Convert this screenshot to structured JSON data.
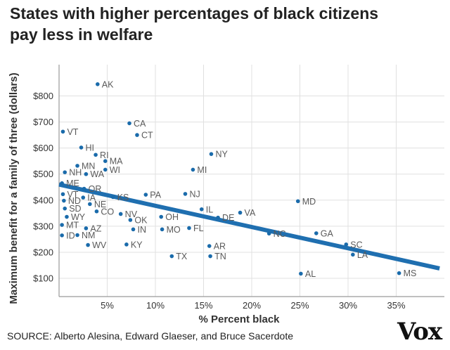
{
  "chart_data": {
    "type": "scatter",
    "title_line1": "States with higher percentages of black citizens",
    "title_line2": "pay less in welfare",
    "xlabel": "% Percent black",
    "ylabel": "Maximum benefit for a family of three (dollars)",
    "xlim": [
      0,
      40
    ],
    "ylim": [
      30,
      920
    ],
    "x_ticks": [
      {
        "value": 5,
        "label": "5%"
      },
      {
        "value": 10,
        "label": "10%"
      },
      {
        "value": 15,
        "label": "15%"
      },
      {
        "value": 20,
        "label": "20%"
      },
      {
        "value": 25,
        "label": "25%"
      },
      {
        "value": 30,
        "label": "30%"
      },
      {
        "value": 35,
        "label": "35%"
      }
    ],
    "y_ticks": [
      {
        "value": 100,
        "label": "$100"
      },
      {
        "value": 200,
        "label": "$200"
      },
      {
        "value": 300,
        "label": "$300"
      },
      {
        "value": 400,
        "label": "$400"
      },
      {
        "value": 500,
        "label": "$500"
      },
      {
        "value": 600,
        "label": "$600"
      },
      {
        "value": 700,
        "label": "$700"
      },
      {
        "value": 800,
        "label": "$800"
      }
    ],
    "grid": true,
    "trend_line": {
      "x": [
        0,
        39.5
      ],
      "y": [
        460,
        138
      ]
    },
    "points": [
      {
        "label": "AK",
        "x": 4.0,
        "y": 845
      },
      {
        "label": "CA",
        "x": 7.3,
        "y": 695
      },
      {
        "label": "CT",
        "x": 8.1,
        "y": 650
      },
      {
        "label": "VT",
        "x": 0.4,
        "y": 663
      },
      {
        "label": "HI",
        "x": 2.3,
        "y": 602
      },
      {
        "label": "RI",
        "x": 3.8,
        "y": 574
      },
      {
        "label": "MA",
        "x": 4.8,
        "y": 550
      },
      {
        "label": "MN",
        "x": 1.9,
        "y": 532
      },
      {
        "label": "WI",
        "x": 4.8,
        "y": 517
      },
      {
        "label": "WA",
        "x": 2.8,
        "y": 500
      },
      {
        "label": "NH",
        "x": 0.6,
        "y": 507
      },
      {
        "label": "NY",
        "x": 15.8,
        "y": 577
      },
      {
        "label": "MI",
        "x": 13.9,
        "y": 517
      },
      {
        "label": "ME",
        "x": 0.3,
        "y": 465
      },
      {
        "label": "OR",
        "x": 2.6,
        "y": 444
      },
      {
        "label": "VT",
        "x": 0.4,
        "y": 423
      },
      {
        "label": "ND",
        "x": 0.5,
        "y": 398
      },
      {
        "label": "IA",
        "x": 2.5,
        "y": 410
      },
      {
        "label": "KS",
        "x": 5.6,
        "y": 412
      },
      {
        "label": "NE",
        "x": 3.2,
        "y": 385
      },
      {
        "label": "SD",
        "x": 0.6,
        "y": 368
      },
      {
        "label": "WY",
        "x": 0.8,
        "y": 336
      },
      {
        "label": "CO",
        "x": 3.9,
        "y": 357
      },
      {
        "label": "PA",
        "x": 9.0,
        "y": 421
      },
      {
        "label": "NJ",
        "x": 13.1,
        "y": 424
      },
      {
        "label": "MD",
        "x": 24.8,
        "y": 396
      },
      {
        "label": "IL",
        "x": 14.8,
        "y": 365
      },
      {
        "label": "DE",
        "x": 16.5,
        "y": 333
      },
      {
        "label": "VA",
        "x": 18.8,
        "y": 352
      },
      {
        "label": "NV",
        "x": 6.4,
        "y": 347
      },
      {
        "label": "OH",
        "x": 10.6,
        "y": 336
      },
      {
        "label": "OK",
        "x": 7.4,
        "y": 324
      },
      {
        "label": "MT",
        "x": 0.3,
        "y": 305
      },
      {
        "label": "AZ",
        "x": 2.8,
        "y": 292
      },
      {
        "label": "IN",
        "x": 7.7,
        "y": 288
      },
      {
        "label": "FL",
        "x": 13.5,
        "y": 293
      },
      {
        "label": "MO",
        "x": 10.7,
        "y": 288
      },
      {
        "label": "ID",
        "x": 0.3,
        "y": 265
      },
      {
        "label": "NM",
        "x": 1.9,
        "y": 266
      },
      {
        "label": "NC",
        "x": 21.8,
        "y": 272
      },
      {
        "label": "GA",
        "x": 26.7,
        "y": 273
      },
      {
        "label": "SC",
        "x": 29.8,
        "y": 230
      },
      {
        "label": "WV",
        "x": 3.0,
        "y": 228
      },
      {
        "label": "KY",
        "x": 7.0,
        "y": 230
      },
      {
        "label": "AR",
        "x": 15.6,
        "y": 224
      },
      {
        "label": "LA",
        "x": 30.5,
        "y": 191
      },
      {
        "label": "TX",
        "x": 11.7,
        "y": 185
      },
      {
        "label": "TN",
        "x": 15.7,
        "y": 185
      },
      {
        "label": "AL",
        "x": 25.1,
        "y": 118
      },
      {
        "label": "MS",
        "x": 35.3,
        "y": 120
      }
    ]
  },
  "footer": {
    "source": "SOURCE: Alberto Alesina, Edward Glaeser, and Bruce Sacerdote",
    "logo_text": "Vox"
  },
  "colors": {
    "point": "#1a6bab",
    "trend": "#1f6fb0",
    "grid": "#e0e0e0",
    "axis": "#9a9a9a",
    "label": "#5a5a5a"
  }
}
